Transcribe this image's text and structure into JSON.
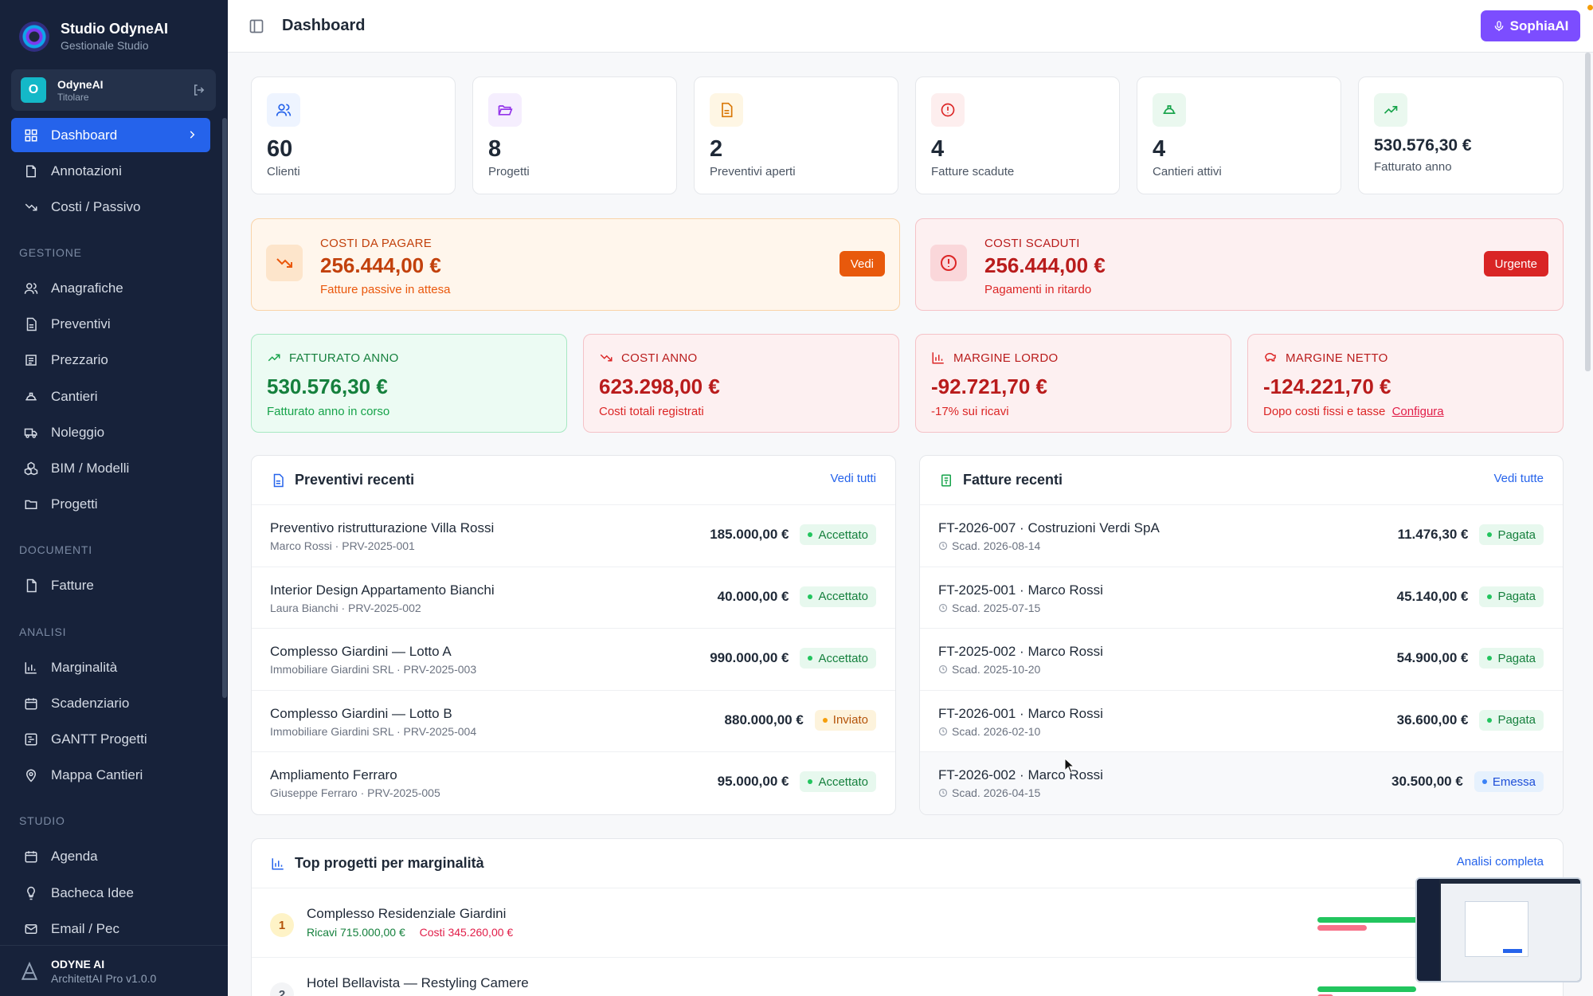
{
  "brand": {
    "title": "Studio OdyneAI",
    "subtitle": "Gestionale Studio"
  },
  "user": {
    "initial": "O",
    "name": "OdyneAI",
    "role": "Titolare"
  },
  "nav": {
    "top": [
      {
        "label": "Dashboard",
        "icon": "grid-icon",
        "active": true
      },
      {
        "label": "Annotazioni",
        "icon": "note-icon"
      },
      {
        "label": "Costi / Passivo",
        "icon": "trending-down-icon"
      }
    ],
    "gestione_label": "GESTIONE",
    "gestione": [
      {
        "label": "Anagrafiche",
        "icon": "users-icon"
      },
      {
        "label": "Preventivi",
        "icon": "document-icon"
      },
      {
        "label": "Prezzario",
        "icon": "book-icon"
      },
      {
        "label": "Cantieri",
        "icon": "helmet-icon"
      },
      {
        "label": "Noleggio",
        "icon": "truck-icon"
      },
      {
        "label": "BIM / Modelli",
        "icon": "cubes-icon"
      },
      {
        "label": "Progetti",
        "icon": "folder-icon"
      }
    ],
    "documenti_label": "DOCUMENTI",
    "documenti": [
      {
        "label": "Fatture",
        "icon": "invoice-icon"
      }
    ],
    "analisi_label": "ANALISI",
    "analisi": [
      {
        "label": "Marginalità",
        "icon": "chart-icon"
      },
      {
        "label": "Scadenziario",
        "icon": "calendar-icon"
      },
      {
        "label": "GANTT Progetti",
        "icon": "gantt-icon"
      },
      {
        "label": "Mappa Cantieri",
        "icon": "map-pin-icon"
      }
    ],
    "studio_label": "STUDIO",
    "studio": [
      {
        "label": "Agenda",
        "icon": "calendar-icon"
      },
      {
        "label": "Bacheca Idee",
        "icon": "bulb-icon"
      },
      {
        "label": "Email / Pec",
        "icon": "mail-icon"
      }
    ]
  },
  "footer": {
    "title": "ODYNE AI",
    "subtitle": "ArchitettAI Pro v1.0.0"
  },
  "header": {
    "title": "Dashboard",
    "assistant_label": "SophiaAI"
  },
  "stats": [
    {
      "value": "60",
      "label": "Clienti",
      "color": "#2563eb",
      "bg": "#eef4ff"
    },
    {
      "value": "8",
      "label": "Progetti",
      "color": "#9333ea",
      "bg": "#f5eefe"
    },
    {
      "value": "2",
      "label": "Preventivi aperti",
      "color": "#d97706",
      "bg": "#fef6e4"
    },
    {
      "value": "4",
      "label": "Fatture scadute",
      "color": "#dc2626",
      "bg": "#fdeeee"
    },
    {
      "value": "4",
      "label": "Cantieri attivi",
      "color": "#16a34a",
      "bg": "#eaf8ef"
    },
    {
      "value": "530.576,30 €",
      "label": "Fatturato anno",
      "color": "#16a34a",
      "bg": "#eaf8ef"
    }
  ],
  "alerts": {
    "costi_da_pagare": {
      "kicker": "COSTI DA PAGARE",
      "value": "256.444,00 €",
      "sub": "Fatture passive in attesa",
      "button": "Vedi"
    },
    "costi_scaduti": {
      "kicker": "COSTI SCADUTI",
      "value": "256.444,00 €",
      "sub": "Pagamenti in ritardo",
      "button": "Urgente"
    }
  },
  "kpis": {
    "fatturato": {
      "label": "FATTURATO ANNO",
      "value": "530.576,30 €",
      "sub": "Fatturato anno in corso"
    },
    "costi": {
      "label": "COSTI ANNO",
      "value": "623.298,00 €",
      "sub": "Costi totali registrati"
    },
    "margine_lordo": {
      "label": "MARGINE LORDO",
      "value": "-92.721,70 €",
      "sub": "-17% sui ricavi"
    },
    "margine_netto": {
      "label": "MARGINE NETTO",
      "value": "-124.221,70 €",
      "sub": "Dopo costi fissi e tasse",
      "link": "Configura"
    }
  },
  "preventivi": {
    "title": "Preventivi recenti",
    "link": "Vedi tutti",
    "rows": [
      {
        "title": "Preventivo ristrutturazione Villa Rossi",
        "sub": "Marco Rossi · PRV-2025-001",
        "amount": "185.000,00 €",
        "status": "Accettato",
        "tone": "green"
      },
      {
        "title": "Interior Design Appartamento Bianchi",
        "sub": "Laura Bianchi · PRV-2025-002",
        "amount": "40.000,00 €",
        "status": "Accettato",
        "tone": "green"
      },
      {
        "title": "Complesso Giardini — Lotto A",
        "sub": "Immobiliare Giardini SRL · PRV-2025-003",
        "amount": "990.000,00 €",
        "status": "Accettato",
        "tone": "green"
      },
      {
        "title": "Complesso Giardini — Lotto B",
        "sub": "Immobiliare Giardini SRL · PRV-2025-004",
        "amount": "880.000,00 €",
        "status": "Inviato",
        "tone": "amber"
      },
      {
        "title": "Ampliamento Ferraro",
        "sub": "Giuseppe Ferraro · PRV-2025-005",
        "amount": "95.000,00 €",
        "status": "Accettato",
        "tone": "green"
      }
    ]
  },
  "fatture": {
    "title": "Fatture recenti",
    "link": "Vedi tutte",
    "rows": [
      {
        "title": "FT-2026-007 · Costruzioni Verdi SpA",
        "sub": "Scad. 2026-08-14",
        "amount": "11.476,30 €",
        "status": "Pagata",
        "tone": "green"
      },
      {
        "title": "FT-2025-001 · Marco Rossi",
        "sub": "Scad. 2025-07-15",
        "amount": "45.140,00 €",
        "status": "Pagata",
        "tone": "green"
      },
      {
        "title": "FT-2025-002 · Marco Rossi",
        "sub": "Scad. 2025-10-20",
        "amount": "54.900,00 €",
        "status": "Pagata",
        "tone": "green"
      },
      {
        "title": "FT-2026-001 · Marco Rossi",
        "sub": "Scad. 2026-02-10",
        "amount": "36.600,00 €",
        "status": "Pagata",
        "tone": "green"
      },
      {
        "title": "FT-2026-002 · Marco Rossi",
        "sub": "Scad. 2026-04-15",
        "amount": "30.500,00 €",
        "status": "Emessa",
        "tone": "blue"
      }
    ]
  },
  "top_progetti": {
    "title": "Top progetti per marginalità",
    "link": "Analisi completa",
    "rows": [
      {
        "rank": "1",
        "title": "Complesso Residenziale Giardini",
        "ricavi": "Ricavi 715.000,00 €",
        "costi": "Costi 345.260,00 €",
        "ricavi_frac": 1.0,
        "costi_frac": 0.48
      },
      {
        "rank": "2",
        "title": "Hotel Bellavista — Restyling Camere",
        "ricavi": "",
        "costi": "",
        "ricavi_frac": 0.95,
        "costi_frac": 0.15
      }
    ]
  }
}
